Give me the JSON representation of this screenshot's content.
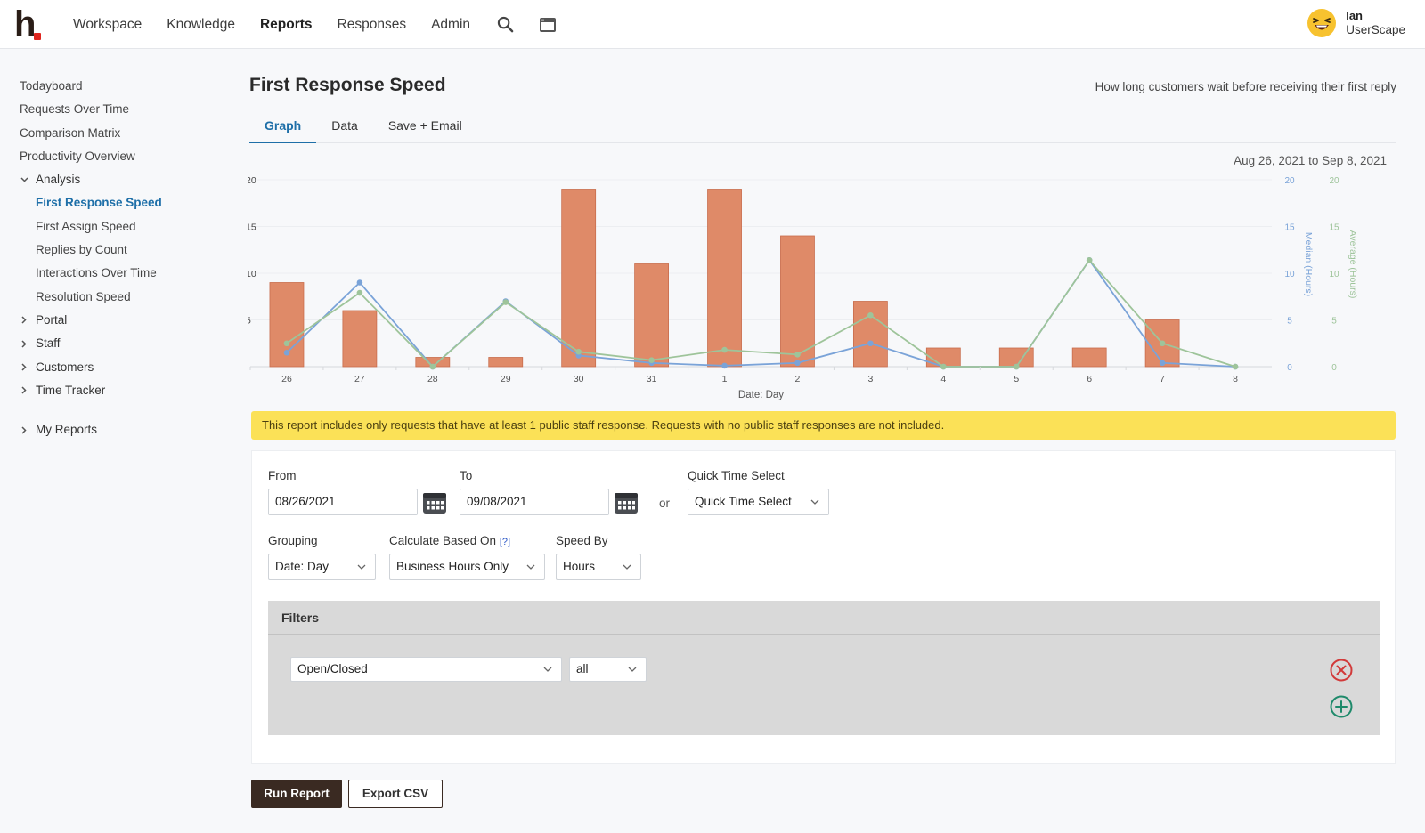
{
  "header": {
    "nav": [
      "Workspace",
      "Knowledge",
      "Reports",
      "Responses",
      "Admin"
    ],
    "active_nav": "Reports",
    "user_name": "Ian",
    "user_org": "UserScape"
  },
  "sidebar": {
    "items": [
      {
        "label": "Todayboard"
      },
      {
        "label": "Requests Over Time"
      },
      {
        "label": "Comparison Matrix"
      },
      {
        "label": "Productivity Overview"
      }
    ],
    "analysis_label": "Analysis",
    "analysis_items": [
      {
        "label": "First Response Speed"
      },
      {
        "label": "First Assign Speed"
      },
      {
        "label": "Replies by Count"
      },
      {
        "label": "Interactions Over Time"
      },
      {
        "label": "Resolution Speed"
      }
    ],
    "sections": [
      {
        "label": "Portal"
      },
      {
        "label": "Staff"
      },
      {
        "label": "Customers"
      },
      {
        "label": "Time Tracker"
      }
    ],
    "my_reports_label": "My Reports"
  },
  "page": {
    "title": "First Response Speed",
    "subtitle": "How long customers wait before receiving their first reply",
    "tabs": [
      "Graph",
      "Data",
      "Save + Email"
    ],
    "active_tab": "Graph",
    "date_range": "Aug 26, 2021 to Sep 8, 2021",
    "notice": "This report includes only requests that have at least 1 public staff response. Requests with no public staff responses are not included."
  },
  "chart_data": {
    "type": "bar",
    "categories": [
      "26",
      "27",
      "28",
      "29",
      "30",
      "31",
      "1",
      "2",
      "3",
      "4",
      "5",
      "6",
      "7",
      "8"
    ],
    "xlabel": "Date: Day",
    "ylim": [
      0,
      20
    ],
    "y_ticks": [
      5,
      10,
      15,
      20
    ],
    "right_axes": [
      {
        "label": "Median (Hours)",
        "ticks": [
          0,
          5,
          10,
          15,
          20
        ],
        "color": "#7aa3d8"
      },
      {
        "label": "Average (Hours)",
        "ticks": [
          0,
          5,
          10,
          15,
          20
        ],
        "color": "#9ec49a"
      }
    ],
    "series": [
      {
        "values": [
          9,
          6,
          1,
          1,
          19,
          11,
          19,
          14,
          7,
          2,
          2,
          2,
          5,
          0
        ],
        "color": "#df8a68",
        "kind": "bar"
      },
      {
        "name": "Median (Hours)",
        "values": [
          1.5,
          9.0,
          0,
          7.0,
          1.2,
          0.4,
          0.1,
          0.4,
          2.5,
          0,
          0,
          11.4,
          0.4,
          0
        ],
        "color": "#7aa3d8",
        "kind": "line"
      },
      {
        "name": "Average (Hours)",
        "values": [
          2.5,
          7.9,
          0,
          6.9,
          1.6,
          0.7,
          1.8,
          1.3,
          5.5,
          0,
          0,
          11.4,
          2.5,
          0
        ],
        "color": "#9ec49a",
        "kind": "line"
      }
    ],
    "grid": true
  },
  "form": {
    "from_label": "From",
    "from_value": "08/26/2021",
    "to_label": "To",
    "to_value": "09/08/2021",
    "or_label": "or",
    "quick_label": "Quick Time Select",
    "quick_value": "Quick Time Select",
    "grouping_label": "Grouping",
    "grouping_value": "Date: Day",
    "calc_label": "Calculate Based On",
    "calc_help": "[?]",
    "calc_value": "Business Hours Only",
    "speed_label": "Speed By",
    "speed_value": "Hours",
    "filters_title": "Filters",
    "filter_field": "Open/Closed",
    "filter_value": "all",
    "run_label": "Run Report",
    "export_label": "Export CSV"
  }
}
